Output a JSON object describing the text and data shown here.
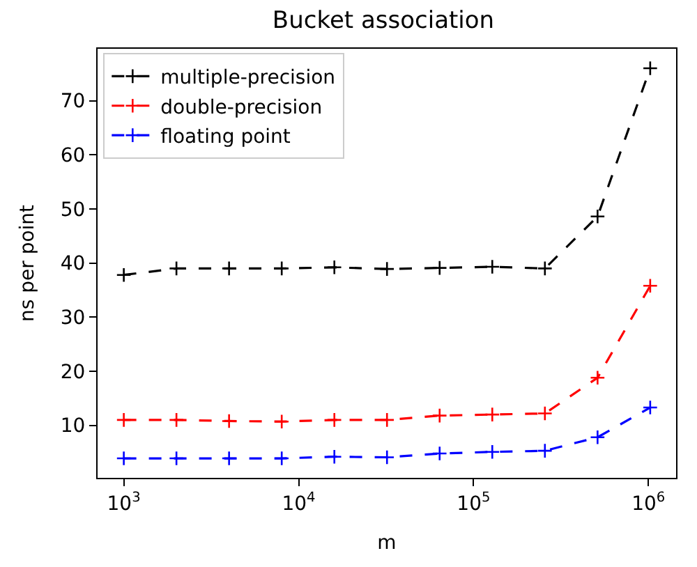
{
  "chart_data": {
    "type": "line",
    "title": "Bucket association",
    "xlabel": "m",
    "ylabel": "ns per point",
    "x": [
      1000,
      2000,
      4000,
      8000,
      16000,
      32000,
      64000,
      128000,
      256000,
      512000,
      1024000
    ],
    "series": [
      {
        "name": "multiple-precision",
        "color": "#000000",
        "values": [
          37.8,
          39,
          39,
          39,
          39.2,
          38.9,
          39.1,
          39.3,
          39,
          48.6,
          76
        ]
      },
      {
        "name": "double-precision",
        "color": "#ff0000",
        "values": [
          11,
          11,
          10.8,
          10.7,
          11,
          11,
          11.8,
          12,
          12.2,
          18.8,
          35.8
        ]
      },
      {
        "name": "floating point",
        "color": "#0000ff",
        "values": [
          3.9,
          3.9,
          3.9,
          3.9,
          4.2,
          4.1,
          4.8,
          5.1,
          5.3,
          7.8,
          13.3
        ]
      }
    ],
    "log": "x",
    "xlim": [
      708,
      1440000
    ],
    "xticks": [
      {
        "value": 1000,
        "label": "10$^{3}$"
      },
      {
        "value": 10000,
        "label": "10$^{4}$"
      },
      {
        "value": 100000,
        "label": "10$^{5}$"
      },
      {
        "value": 1000000,
        "label": "10$^{6}$"
      }
    ],
    "ylim": [
      0.3,
      79.6
    ],
    "yticks": [
      10,
      20,
      30,
      40,
      50,
      60,
      70
    ],
    "legend": "top left",
    "marker": "cross",
    "line_style": "dashed"
  }
}
